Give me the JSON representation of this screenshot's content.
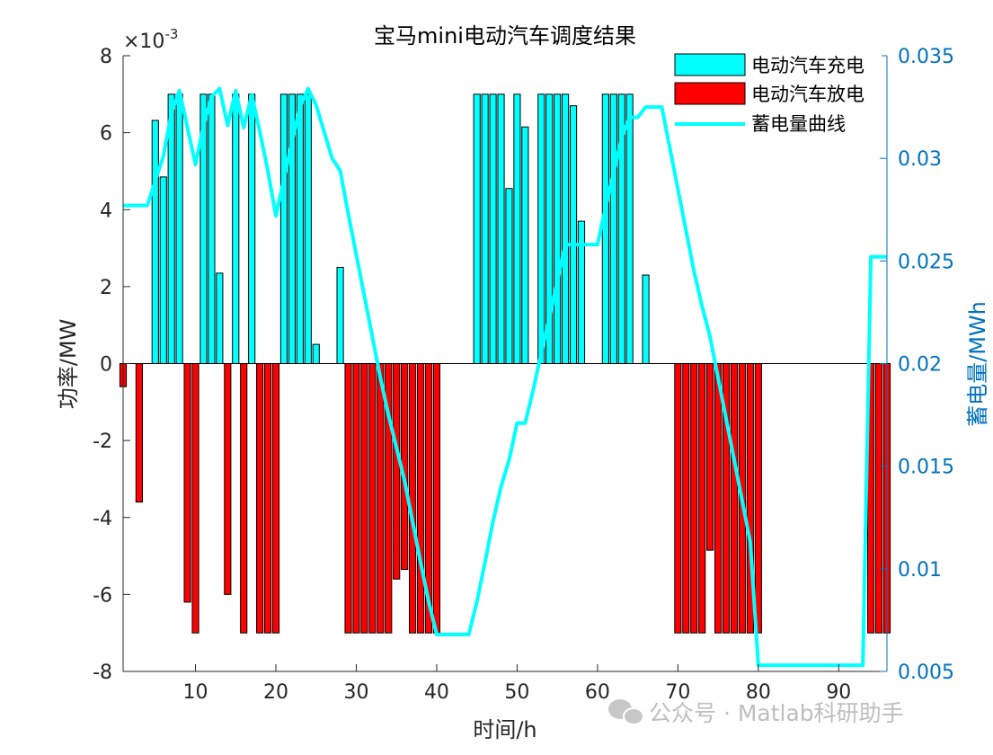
{
  "chart_data": {
    "type": "bar",
    "title": "宝马mini电动汽车调度结果",
    "xlabel": "时间/h",
    "ylabel": "功率/MW",
    "y2label": "蓄电量/MWh",
    "exponent": "×10",
    "exponent_power": "-3",
    "xlim": [
      1,
      96
    ],
    "ylim": [
      -8,
      8
    ],
    "y2lim": [
      0.005,
      0.035
    ],
    "xticks": [
      "10",
      "20",
      "30",
      "40",
      "50",
      "60",
      "70",
      "80",
      "90"
    ],
    "xtick_values": [
      10,
      20,
      30,
      40,
      50,
      60,
      70,
      80,
      90
    ],
    "yticks": [
      "-8",
      "-6",
      "-4",
      "-2",
      "0",
      "2",
      "4",
      "6",
      "8"
    ],
    "ytick_values": [
      -8,
      -6,
      -4,
      -2,
      0,
      2,
      4,
      6,
      8
    ],
    "y2ticks": [
      "0.005",
      "0.01",
      "0.015",
      "0.02",
      "0.025",
      "0.03",
      "0.035"
    ],
    "y2tick_values": [
      0.005,
      0.01,
      0.015,
      0.02,
      0.025,
      0.03,
      0.035
    ],
    "legend_position": "top-right",
    "series": [
      {
        "name": "电动汽车充电",
        "color": "#00ffff",
        "points": [
          [
            5,
            6.32
          ],
          [
            6,
            4.85
          ],
          [
            7,
            7.0
          ],
          [
            8,
            7.0
          ],
          [
            11,
            7.0
          ],
          [
            12,
            7.0
          ],
          [
            13,
            2.35
          ],
          [
            15,
            7.0
          ],
          [
            17,
            7.0
          ],
          [
            21,
            7.0
          ],
          [
            22,
            7.0
          ],
          [
            23,
            7.0
          ],
          [
            24,
            7.0
          ],
          [
            25,
            0.5
          ],
          [
            28,
            2.5
          ],
          [
            45,
            7.0
          ],
          [
            46,
            7.0
          ],
          [
            47,
            7.0
          ],
          [
            48,
            7.0
          ],
          [
            49,
            4.55
          ],
          [
            50,
            7.0
          ],
          [
            51,
            6.15
          ],
          [
            53,
            7.0
          ],
          [
            54,
            7.0
          ],
          [
            55,
            7.0
          ],
          [
            56,
            7.0
          ],
          [
            57,
            6.7
          ],
          [
            58,
            3.7
          ],
          [
            61,
            7.0
          ],
          [
            62,
            7.0
          ],
          [
            63,
            7.0
          ],
          [
            64,
            7.0
          ],
          [
            66,
            2.3
          ]
        ]
      },
      {
        "name": "电动汽车放电",
        "color": "#ff0000",
        "points": [
          [
            1,
            -0.6
          ],
          [
            3,
            -3.6
          ],
          [
            9,
            -6.2
          ],
          [
            10,
            -7.0
          ],
          [
            14,
            -6.0
          ],
          [
            16,
            -7.0
          ],
          [
            18,
            -7.0
          ],
          [
            19,
            -7.0
          ],
          [
            20,
            -7.0
          ],
          [
            29,
            -7.0
          ],
          [
            30,
            -7.0
          ],
          [
            31,
            -7.0
          ],
          [
            32,
            -7.0
          ],
          [
            33,
            -7.0
          ],
          [
            34,
            -7.0
          ],
          [
            35,
            -5.6
          ],
          [
            36,
            -5.35
          ],
          [
            37,
            -7.0
          ],
          [
            38,
            -7.0
          ],
          [
            39,
            -7.0
          ],
          [
            40,
            -7.0
          ],
          [
            70,
            -7.0
          ],
          [
            71,
            -7.0
          ],
          [
            72,
            -7.0
          ],
          [
            73,
            -7.0
          ],
          [
            74,
            -4.85
          ],
          [
            75,
            -7.0
          ],
          [
            76,
            -7.0
          ],
          [
            77,
            -7.0
          ],
          [
            78,
            -7.0
          ],
          [
            79,
            -7.0
          ],
          [
            80,
            -7.0
          ],
          [
            94,
            -7.0
          ],
          [
            95,
            -7.0
          ],
          [
            96,
            -7.0
          ]
        ]
      },
      {
        "name": "蓄电量曲线",
        "color": "#00ffff",
        "axis": "right",
        "points": [
          [
            1,
            0.0277
          ],
          [
            2,
            0.0277
          ],
          [
            3,
            0.0277
          ],
          [
            4,
            0.0277
          ],
          [
            5,
            0.0289
          ],
          [
            6,
            0.0301
          ],
          [
            7,
            0.0322
          ],
          [
            8,
            0.0333
          ],
          [
            9,
            0.0315
          ],
          [
            10,
            0.0297
          ],
          [
            11,
            0.0316
          ],
          [
            12,
            0.033
          ],
          [
            13,
            0.0334
          ],
          [
            14,
            0.0316
          ],
          [
            15,
            0.0333
          ],
          [
            16,
            0.0315
          ],
          [
            17,
            0.0331
          ],
          [
            18,
            0.0313
          ],
          [
            19,
            0.0294
          ],
          [
            20,
            0.0272
          ],
          [
            21,
            0.029
          ],
          [
            22,
            0.0308
          ],
          [
            23,
            0.0325
          ],
          [
            24,
            0.0334
          ],
          [
            25,
            0.0326
          ],
          [
            27,
            0.03
          ],
          [
            28,
            0.0294
          ],
          [
            29,
            0.0273
          ],
          [
            30,
            0.0253
          ],
          [
            31,
            0.0233
          ],
          [
            32,
            0.0213
          ],
          [
            33,
            0.0193
          ],
          [
            34,
            0.0175
          ],
          [
            35,
            0.0159
          ],
          [
            36,
            0.0143
          ],
          [
            37,
            0.0123
          ],
          [
            38,
            0.0103
          ],
          [
            39,
            0.0084
          ],
          [
            40,
            0.0068
          ],
          [
            41,
            0.0068
          ],
          [
            42,
            0.0068
          ],
          [
            43,
            0.0068
          ],
          [
            44,
            0.0068
          ],
          [
            45,
            0.0084
          ],
          [
            46,
            0.0103
          ],
          [
            47,
            0.0123
          ],
          [
            48,
            0.014
          ],
          [
            49,
            0.0153
          ],
          [
            50,
            0.0171
          ],
          [
            51,
            0.0171
          ],
          [
            52,
            0.0187
          ],
          [
            53,
            0.0205
          ],
          [
            54,
            0.0222
          ],
          [
            55,
            0.024
          ],
          [
            56,
            0.0258
          ],
          [
            57,
            0.0258
          ],
          [
            58,
            0.0258
          ],
          [
            59,
            0.0258
          ],
          [
            60,
            0.0258
          ],
          [
            61,
            0.0276
          ],
          [
            62,
            0.0293
          ],
          [
            63,
            0.031
          ],
          [
            64,
            0.032
          ],
          [
            65,
            0.032
          ],
          [
            66,
            0.0325
          ],
          [
            67,
            0.0325
          ],
          [
            68,
            0.0325
          ],
          [
            69,
            0.0305
          ],
          [
            70,
            0.0285
          ],
          [
            71,
            0.0265
          ],
          [
            72,
            0.0245
          ],
          [
            73,
            0.0228
          ],
          [
            74,
            0.0213
          ],
          [
            75,
            0.0193
          ],
          [
            76,
            0.0173
          ],
          [
            77,
            0.0153
          ],
          [
            78,
            0.0133
          ],
          [
            79,
            0.0113
          ],
          [
            80,
            0.0053
          ],
          [
            81,
            0.0053
          ],
          [
            82,
            0.0053
          ],
          [
            83,
            0.0053
          ],
          [
            84,
            0.0053
          ],
          [
            85,
            0.0053
          ],
          [
            86,
            0.0053
          ],
          [
            87,
            0.0053
          ],
          [
            88,
            0.0053
          ],
          [
            89,
            0.0053
          ],
          [
            90,
            0.0053
          ],
          [
            91,
            0.0053
          ],
          [
            92,
            0.0053
          ],
          [
            93,
            0.0053
          ],
          [
            94,
            0.0252
          ],
          [
            95,
            0.0252
          ],
          [
            96,
            0.0252
          ]
        ]
      }
    ],
    "watermark": "公众号 · Matlab科研助手"
  },
  "colors": {
    "axis": "#262626",
    "right_axis": "#0072bd",
    "bar_edge": "#000000"
  }
}
